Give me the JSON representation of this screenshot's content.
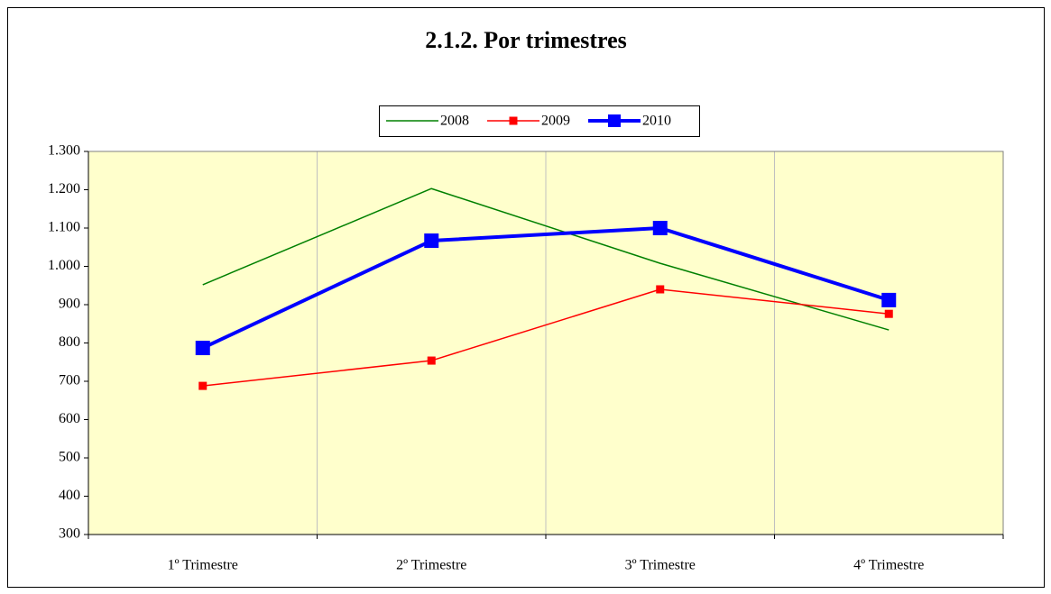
{
  "chart_data": {
    "type": "line",
    "title": "2.1.2. Por trimestres",
    "categories": [
      "1º Trimestre",
      "2º Trimestre",
      "3º Trimestre",
      "4º Trimestre"
    ],
    "series": [
      {
        "name": "2008",
        "color": "#008000",
        "line_width": 1.5,
        "marker": "none",
        "values": [
          952,
          1203,
          1008,
          834
        ]
      },
      {
        "name": "2009",
        "color": "#ff0000",
        "line_width": 1.5,
        "marker": "square",
        "values": [
          688,
          754,
          940,
          876
        ]
      },
      {
        "name": "2010",
        "color": "#0000ff",
        "line_width": 4,
        "marker": "square",
        "values": [
          787,
          1067,
          1100,
          912
        ]
      }
    ],
    "ylim": [
      300,
      1300
    ],
    "yticks": [
      300,
      400,
      500,
      600,
      700,
      800,
      900,
      {
        "value": 1000,
        "label": "1.000"
      },
      {
        "value": 1100,
        "label": "1.100"
      },
      {
        "value": 1200,
        "label": "1.200"
      },
      {
        "value": 1300,
        "label": "1.300"
      }
    ],
    "grid": true,
    "plot_background": "#ffffcc",
    "legend": "top"
  }
}
